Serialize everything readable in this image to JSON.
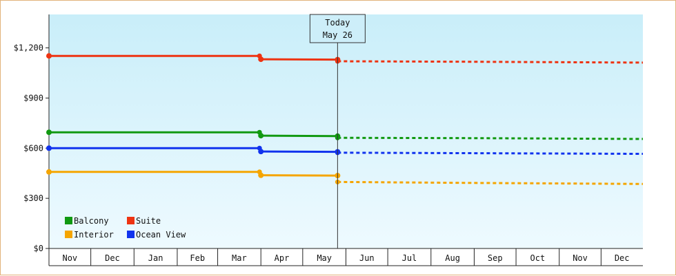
{
  "chart_data": {
    "type": "line",
    "title": "",
    "xlabel": "",
    "ylabel": "",
    "y_tick_labels": [
      "$0",
      "$300",
      "$600",
      "$900",
      "$1,200"
    ],
    "y_ticks": [
      0,
      300,
      600,
      900,
      1200
    ],
    "ylim": [
      0,
      1200
    ],
    "x_range": [
      "2023-11-01",
      "2024-12-31"
    ],
    "months": [
      "Nov",
      "Dec",
      "Jan",
      "Feb",
      "Mar",
      "Apr",
      "May",
      "Jun",
      "Jul",
      "Aug",
      "Sep",
      "Oct",
      "Nov",
      "Dec"
    ],
    "month_starts": [
      "2023-11-01",
      "2023-12-01",
      "2024-01-01",
      "2024-02-01",
      "2024-03-01",
      "2024-04-01",
      "2024-05-01",
      "2024-06-01",
      "2024-07-01",
      "2024-08-01",
      "2024-09-01",
      "2024-10-01",
      "2024-11-01",
      "2024-12-01"
    ],
    "today": {
      "line1": "Today",
      "line2": "May 26",
      "date": "2024-05-26"
    },
    "grid": false,
    "legend": "bottom-left",
    "background": {
      "top": "#c9eef9",
      "bottom": "#eefaff"
    },
    "series": [
      {
        "name": "Balcony",
        "color": "#119911",
        "actual": [
          [
            "2023-11-01",
            695
          ],
          [
            "2024-03-31",
            695
          ],
          [
            "2024-04-01",
            675
          ],
          [
            "2024-05-26",
            672
          ]
        ],
        "forecast": [
          [
            "2024-05-26",
            662
          ],
          [
            "2024-09-01",
            660
          ],
          [
            "2024-12-31",
            655
          ]
        ]
      },
      {
        "name": "Suite",
        "color": "#ee3311",
        "actual": [
          [
            "2023-11-01",
            1152
          ],
          [
            "2024-03-31",
            1152
          ],
          [
            "2024-04-01",
            1132
          ],
          [
            "2024-05-26",
            1130
          ]
        ],
        "forecast": [
          [
            "2024-05-26",
            1120
          ],
          [
            "2024-09-01",
            1117
          ],
          [
            "2024-12-31",
            1112
          ]
        ]
      },
      {
        "name": "Interior",
        "color": "#f5a500",
        "actual": [
          [
            "2023-11-01",
            458
          ],
          [
            "2024-03-31",
            458
          ],
          [
            "2024-04-01",
            438
          ],
          [
            "2024-05-26",
            436
          ]
        ],
        "forecast": [
          [
            "2024-05-26",
            398
          ],
          [
            "2024-09-01",
            392
          ],
          [
            "2024-12-31",
            386
          ]
        ]
      },
      {
        "name": "Ocean View",
        "color": "#1133ee",
        "actual": [
          [
            "2023-11-01",
            600
          ],
          [
            "2024-03-31",
            600
          ],
          [
            "2024-04-01",
            580
          ],
          [
            "2024-05-26",
            578
          ]
        ],
        "forecast": [
          [
            "2024-05-26",
            573
          ],
          [
            "2024-09-01",
            570
          ],
          [
            "2024-12-31",
            566
          ]
        ]
      }
    ]
  }
}
